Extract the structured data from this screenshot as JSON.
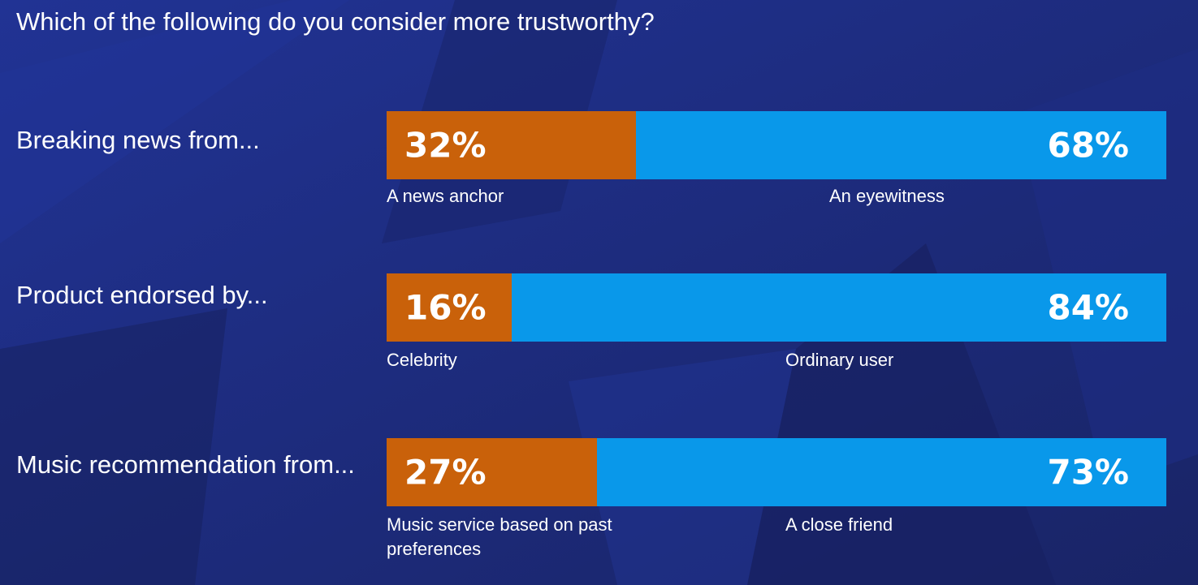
{
  "colors": {
    "background": "#1c2a74",
    "first_option": "#c9610a",
    "second_option": "#0998ea"
  },
  "chart_data": {
    "type": "bar",
    "stacked": true,
    "orientation": "horizontal",
    "title": "Which of the following do you consider more trustworthy?",
    "unit": "%",
    "rows": [
      {
        "label": "Breaking news from...",
        "a_label": "A news anchor",
        "a_value": 32,
        "a_text": "32%",
        "b_label": "An eyewitness",
        "b_value": 68,
        "b_text": "68%"
      },
      {
        "label": "Product endorsed by...",
        "a_label": "Celebrity",
        "a_value": 16,
        "a_text": "16%",
        "b_label": "Ordinary user",
        "b_value": 84,
        "b_text": "84%"
      },
      {
        "label": "Music recommendation from...",
        "a_label": "Music service based on past preferences",
        "a_value": 27,
        "a_text": "27%",
        "b_label": "A close friend",
        "b_value": 73,
        "b_text": "73%"
      }
    ]
  }
}
